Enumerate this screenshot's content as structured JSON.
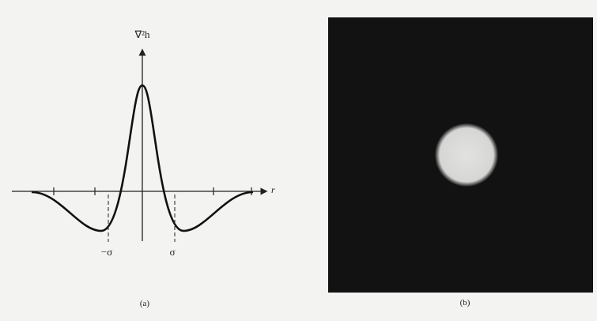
{
  "panel_a": {
    "y_axis_label": "∇²h",
    "x_axis_label": "r",
    "neg_sigma": "−σ",
    "pos_sigma": "σ",
    "caption": "(a)"
  },
  "panel_b": {
    "caption": "(b)"
  }
}
